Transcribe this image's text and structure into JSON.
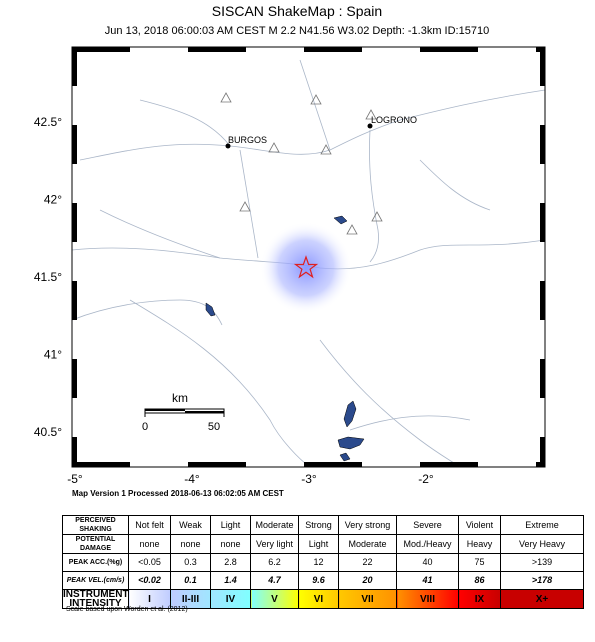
{
  "header": {
    "title": "SISCAN ShakeMap : Spain",
    "subtitle": "Jun 13, 2018 06:00:03 AM CEST   M 2.2   N41.56 W3.02   Depth: -1.3km   ID:15710"
  },
  "map": {
    "lat_labels": [
      "42.5°",
      "42°",
      "41.5°",
      "41°",
      "40.5°"
    ],
    "lon_labels": [
      "-5°",
      "-4°",
      "-3°",
      "-2°"
    ],
    "cities": [
      "BURGOS",
      "LOGRONO"
    ],
    "scale": {
      "unit": "km",
      "start": "0",
      "end": "50"
    }
  },
  "footer": "Map Version 1 Processed 2018-06-13 06:02:05 AM CEST",
  "table": {
    "rows": [
      [
        "PERCEIVED SHAKING",
        "Not felt",
        "Weak",
        "Light",
        "Moderate",
        "Strong",
        "Very strong",
        "Severe",
        "Violent",
        "Extreme"
      ],
      [
        "POTENTIAL DAMAGE",
        "none",
        "none",
        "none",
        "Very light",
        "Light",
        "Moderate",
        "Mod./Heavy",
        "Heavy",
        "Very Heavy"
      ],
      [
        "PEAK ACC.(%g)",
        "<0.05",
        "0.3",
        "2.8",
        "6.2",
        "12",
        "22",
        "40",
        "75",
        ">139"
      ],
      [
        "PEAK VEL.(cm/s)",
        "<0.02",
        "0.1",
        "1.4",
        "4.7",
        "9.6",
        "20",
        "41",
        "86",
        ">178"
      ],
      [
        "INSTRUMENTAL INTENSITY",
        "I",
        "II-III",
        "IV",
        "V",
        "VI",
        "VII",
        "VIII",
        "IX",
        "X+"
      ]
    ]
  },
  "note": "Scale based upon Worden et al. (2012)"
}
